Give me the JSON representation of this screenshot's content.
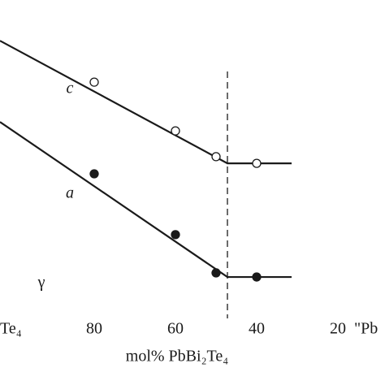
{
  "chart_data": {
    "type": "line",
    "xlabel": "mol% PbBi₂Te₄",
    "xlim": [
      103.2,
      8.4
    ],
    "ylim": [
      0,
      100
    ],
    "xticks": [
      80,
      60,
      40,
      20
    ],
    "end_labels": [
      "Te₄",
      "\"Pb"
    ],
    "dashed_x": 47.2,
    "annotations": [
      {
        "text": "c",
        "x": 86,
        "y": 72
      },
      {
        "text": "a",
        "x": 86,
        "y": 39
      },
      {
        "text": "γ",
        "x": 93,
        "y": 11
      }
    ],
    "series": [
      {
        "name": "c",
        "color": "#1a1a1a",
        "marker": "open",
        "x": [
          80,
          60,
          50,
          40
        ],
        "values": [
          74.2,
          58.9,
          50.8,
          48.7
        ],
        "fit": {
          "x": [
            103.2,
            47.2,
            31.4
          ],
          "values": [
            87.2,
            48.7,
            48.7
          ]
        }
      },
      {
        "name": "a",
        "color": "#1a1a1a",
        "marker": "filled",
        "x": [
          80,
          60,
          50,
          40
        ],
        "values": [
          45.4,
          26.3,
          14.3,
          13.0
        ],
        "fit": {
          "x": [
            103.2,
            47.2,
            31.4
          ],
          "values": [
            61.7,
            13.0,
            13.0
          ]
        }
      }
    ]
  }
}
